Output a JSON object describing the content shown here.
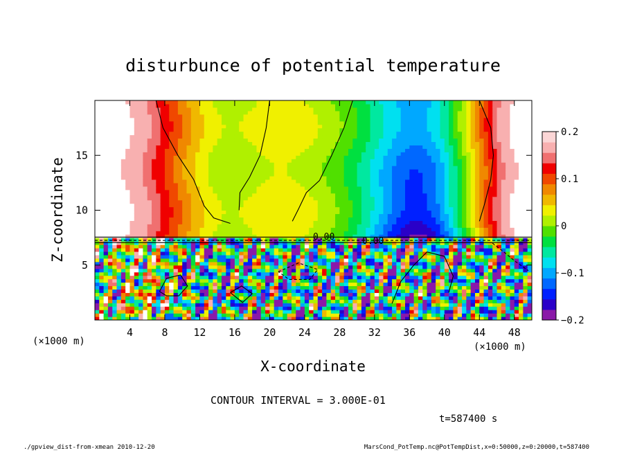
{
  "chart_data": {
    "type": "heatmap",
    "title": "disturbunce of potential temperature",
    "xlabel": "X-coordinate",
    "ylabel": "Z-coordinate",
    "x_unit": "(×1000 m)",
    "y_unit": "(×1000 m)",
    "xlim": [
      0,
      50
    ],
    "ylim": [
      0,
      20
    ],
    "x_ticks": [
      4,
      8,
      12,
      16,
      20,
      24,
      28,
      32,
      36,
      40,
      44,
      48
    ],
    "y_ticks": [
      5,
      10,
      15
    ],
    "colorbar": {
      "range": [
        -0.2,
        0.2
      ],
      "ticks": [
        "0.2",
        "0.1",
        "0",
        "−0.1",
        "−0.2"
      ],
      "tick_values": [
        0.2,
        0.1,
        0,
        -0.1,
        -0.2
      ]
    },
    "contour_labels": [
      "0.00",
      "0.00"
    ],
    "contour_interval_text": "CONTOUR INTERVAL = 3.000E-01",
    "time_text": "t=587400 s"
  },
  "footer": {
    "left": "./gpview_dist-from-xmean  2010-12-20",
    "right": "MarsCond_PotTemp.nc@PotTempDist,x=0:50000,z=0:20000,t=587400"
  },
  "colors": {
    "palette": [
      "#8a19a8",
      "#2a00c8",
      "#0020ff",
      "#0068ff",
      "#00a8ff",
      "#00e0f0",
      "#00e8a0",
      "#00e040",
      "#50e000",
      "#b0f000",
      "#f0f000",
      "#f0b800",
      "#f08800",
      "#f04800",
      "#f00000",
      "#f07070",
      "#f8b0b0"
    ]
  }
}
